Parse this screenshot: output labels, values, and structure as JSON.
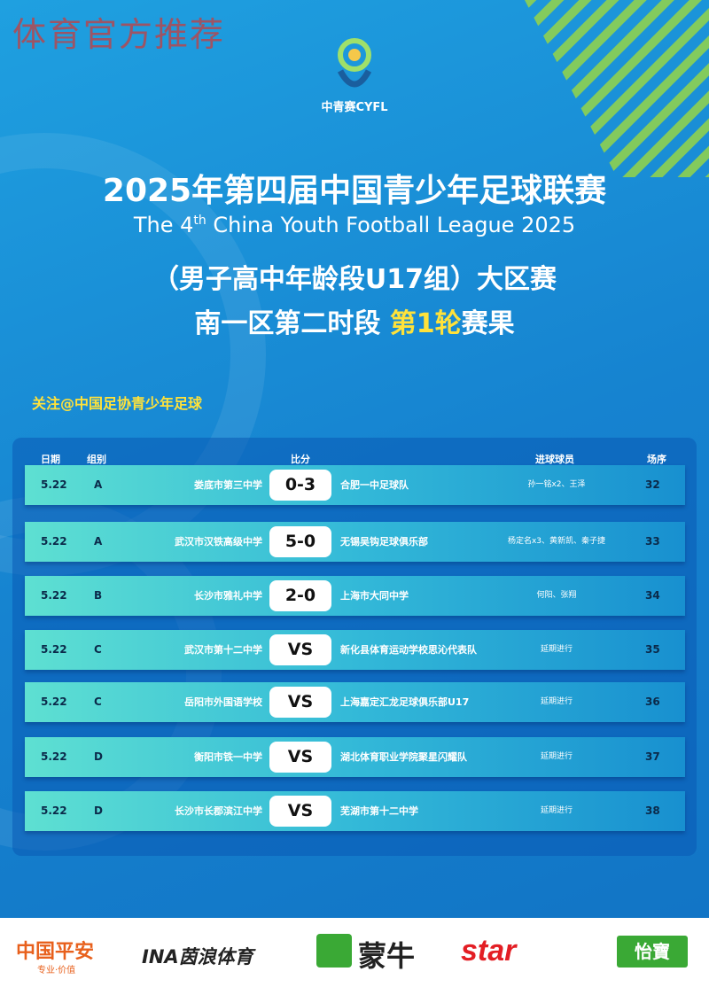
{
  "watermark": "体育官方推荐",
  "logo_text": "中青赛CYFL",
  "title_cn": "2025年第四届中国青少年足球联赛",
  "title_en_pre": "The 4",
  "title_en_sup": "th",
  "title_en_post": " China Youth Football League 2025",
  "subtitle": "（男子高中年龄段U17组）大区赛",
  "round_pre": "南一区第二时段 ",
  "round_hl": "第1轮",
  "round_post": "赛果",
  "follow": "关注@中国足协青少年足球",
  "headers": {
    "date": "日期",
    "group": "组别",
    "score": "比分",
    "scorers": "进球球员",
    "match_no": "场序"
  },
  "matches": [
    {
      "date": "5.22",
      "group": "A",
      "home": "娄底市第三中学",
      "score": "0-3",
      "away": "合肥一中足球队",
      "scorers": "孙一铭x2、王泽",
      "no": "32"
    },
    {
      "date": "5.22",
      "group": "A",
      "home": "武汉市汉铁高级中学",
      "score": "5-0",
      "away": "无锡吴钩足球俱乐部",
      "scorers": "杨定名x3、黄新凯、秦子捷",
      "no": "33"
    },
    {
      "date": "5.22",
      "group": "B",
      "home": "长沙市雅礼中学",
      "score": "2-0",
      "away": "上海市大同中学",
      "scorers": "何阳、张翔",
      "no": "34"
    },
    {
      "date": "5.22",
      "group": "C",
      "home": "武汉市第十二中学",
      "score": "VS",
      "away": "新化县体育运动学校思沁代表队",
      "scorers": "延期进行",
      "no": "35"
    },
    {
      "date": "5.22",
      "group": "C",
      "home": "岳阳市外国语学校",
      "score": "VS",
      "away": "上海嘉定汇龙足球俱乐部U17",
      "scorers": "延期进行",
      "no": "36"
    },
    {
      "date": "5.22",
      "group": "D",
      "home": "衡阳市铁一中学",
      "score": "VS",
      "away": "湖北体育职业学院聚星闪耀队",
      "scorers": "延期进行",
      "no": "37"
    },
    {
      "date": "5.22",
      "group": "D",
      "home": "长沙市长郡滨江中学",
      "score": "VS",
      "away": "芜湖市第十二中学",
      "scorers": "延期进行",
      "no": "38"
    }
  ],
  "sponsors": {
    "pingan": "中国平安",
    "pingan_sub": "专业·价值",
    "inna": "INA茵浪体育",
    "mengniu": "蒙牛",
    "star": "star",
    "yibao": "怡寶"
  },
  "colors": {
    "accent_yellow": "#ffe23a",
    "row_start": "#5ee0d2",
    "row_end": "#1890d0"
  }
}
